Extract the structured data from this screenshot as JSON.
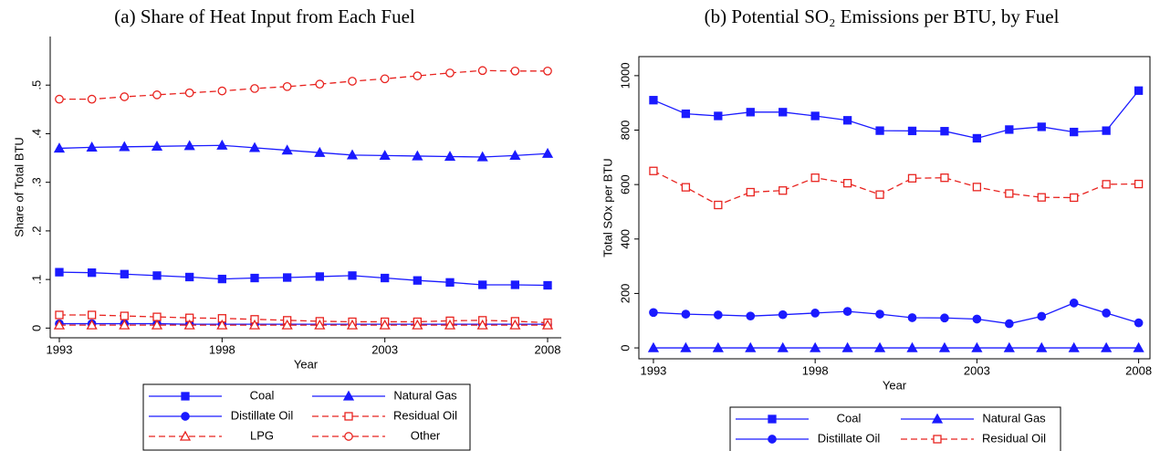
{
  "chart_data": [
    {
      "type": "line",
      "title": "(a) Share of Heat Input from Each Fuel",
      "x_label": "Year",
      "y_label": "Share of Total BTU",
      "x": [
        1993,
        1994,
        1995,
        1996,
        1997,
        1998,
        1999,
        2000,
        2001,
        2002,
        2003,
        2004,
        2005,
        2006,
        2007,
        2008
      ],
      "xlim": [
        1992.72,
        2008.42
      ],
      "xticks": [
        1993,
        1998,
        2003,
        2008
      ],
      "ylim": [
        -0.02,
        0.6
      ],
      "yticks": [
        0,
        {
          "value": 0.1,
          "label": ".1"
        },
        {
          "value": 0.2,
          "label": ".2"
        },
        {
          "value": 0.3,
          "label": ".3"
        },
        {
          "value": 0.4,
          "label": ".4"
        },
        {
          "value": 0.5,
          "label": ".5"
        }
      ],
      "frame": false,
      "series": [
        {
          "name": "Coal",
          "color": "#1a1aff",
          "marker": "square",
          "filled": true,
          "dashed": false,
          "values": [
            0.115,
            0.114,
            0.111,
            0.108,
            0.105,
            0.101,
            0.103,
            0.104,
            0.106,
            0.108,
            0.103,
            0.098,
            0.094,
            0.089,
            0.089,
            0.088
          ]
        },
        {
          "name": "Natural Gas",
          "color": "#1a1aff",
          "marker": "triangle",
          "filled": true,
          "dashed": false,
          "values": [
            0.37,
            0.372,
            0.373,
            0.374,
            0.375,
            0.376,
            0.371,
            0.366,
            0.361,
            0.356,
            0.355,
            0.354,
            0.353,
            0.352,
            0.355,
            0.359
          ]
        },
        {
          "name": "Distillate Oil",
          "color": "#1a1aff",
          "marker": "circle",
          "filled": true,
          "dashed": false,
          "values": [
            0.009,
            0.009,
            0.009,
            0.009,
            0.008,
            0.008,
            0.008,
            0.008,
            0.008,
            0.008,
            0.008,
            0.008,
            0.008,
            0.008,
            0.008,
            0.008
          ]
        },
        {
          "name": "Residual Oil",
          "color": "#e8231f",
          "marker": "square",
          "filled": false,
          "dashed": true,
          "values": [
            0.027,
            0.027,
            0.025,
            0.023,
            0.021,
            0.02,
            0.018,
            0.016,
            0.014,
            0.013,
            0.013,
            0.013,
            0.015,
            0.016,
            0.014,
            0.011
          ]
        },
        {
          "name": "LPG",
          "color": "#e8231f",
          "marker": "triangle",
          "filled": false,
          "dashed": true,
          "values": [
            0.006,
            0.006,
            0.006,
            0.006,
            0.006,
            0.006,
            0.006,
            0.006,
            0.006,
            0.006,
            0.006,
            0.006,
            0.006,
            0.006,
            0.006,
            0.006
          ]
        },
        {
          "name": "Other",
          "color": "#e8231f",
          "marker": "circle",
          "filled": false,
          "dashed": true,
          "values": [
            0.471,
            0.471,
            0.476,
            0.48,
            0.484,
            0.488,
            0.493,
            0.497,
            0.502,
            0.508,
            0.513,
            0.519,
            0.525,
            0.53,
            0.529,
            0.529
          ]
        }
      ]
    },
    {
      "type": "line",
      "title": "(b) Potential SO₂ Emissions per BTU, by Fuel",
      "x_label": "Year",
      "y_label": "Total SOx per BTU",
      "x": [
        1993,
        1994,
        1995,
        1996,
        1997,
        1998,
        1999,
        2000,
        2001,
        2002,
        2003,
        2004,
        2005,
        2006,
        2007,
        2008
      ],
      "xlim": [
        1992.55,
        2008.35
      ],
      "xticks": [
        1993,
        1998,
        2003,
        2008
      ],
      "ylim": [
        -40,
        1070
      ],
      "yticks": [
        0,
        200,
        400,
        600,
        800,
        1000
      ],
      "frame": true,
      "series": [
        {
          "name": "Coal",
          "color": "#1a1aff",
          "marker": "square",
          "filled": true,
          "dashed": false,
          "values": [
            910,
            860,
            852,
            866,
            866,
            852,
            836,
            798,
            797,
            796,
            770,
            802,
            812,
            793,
            798,
            945
          ]
        },
        {
          "name": "Natural Gas",
          "color": "#1a1aff",
          "marker": "triangle",
          "filled": true,
          "dashed": false,
          "values": [
            0,
            0,
            0,
            0,
            0,
            0,
            0,
            0,
            0,
            0,
            0,
            0,
            0,
            0,
            0,
            0
          ]
        },
        {
          "name": "Distillate Oil",
          "color": "#1a1aff",
          "marker": "circle",
          "filled": true,
          "dashed": false,
          "values": [
            130,
            124,
            121,
            117,
            122,
            128,
            134,
            124,
            111,
            110,
            106,
            89,
            116,
            165,
            128,
            92
          ]
        },
        {
          "name": "Residual Oil",
          "color": "#e8231f",
          "marker": "square",
          "filled": false,
          "dashed": true,
          "values": [
            650,
            590,
            525,
            572,
            578,
            625,
            605,
            563,
            623,
            625,
            591,
            567,
            553,
            552,
            601,
            602
          ]
        }
      ]
    }
  ]
}
